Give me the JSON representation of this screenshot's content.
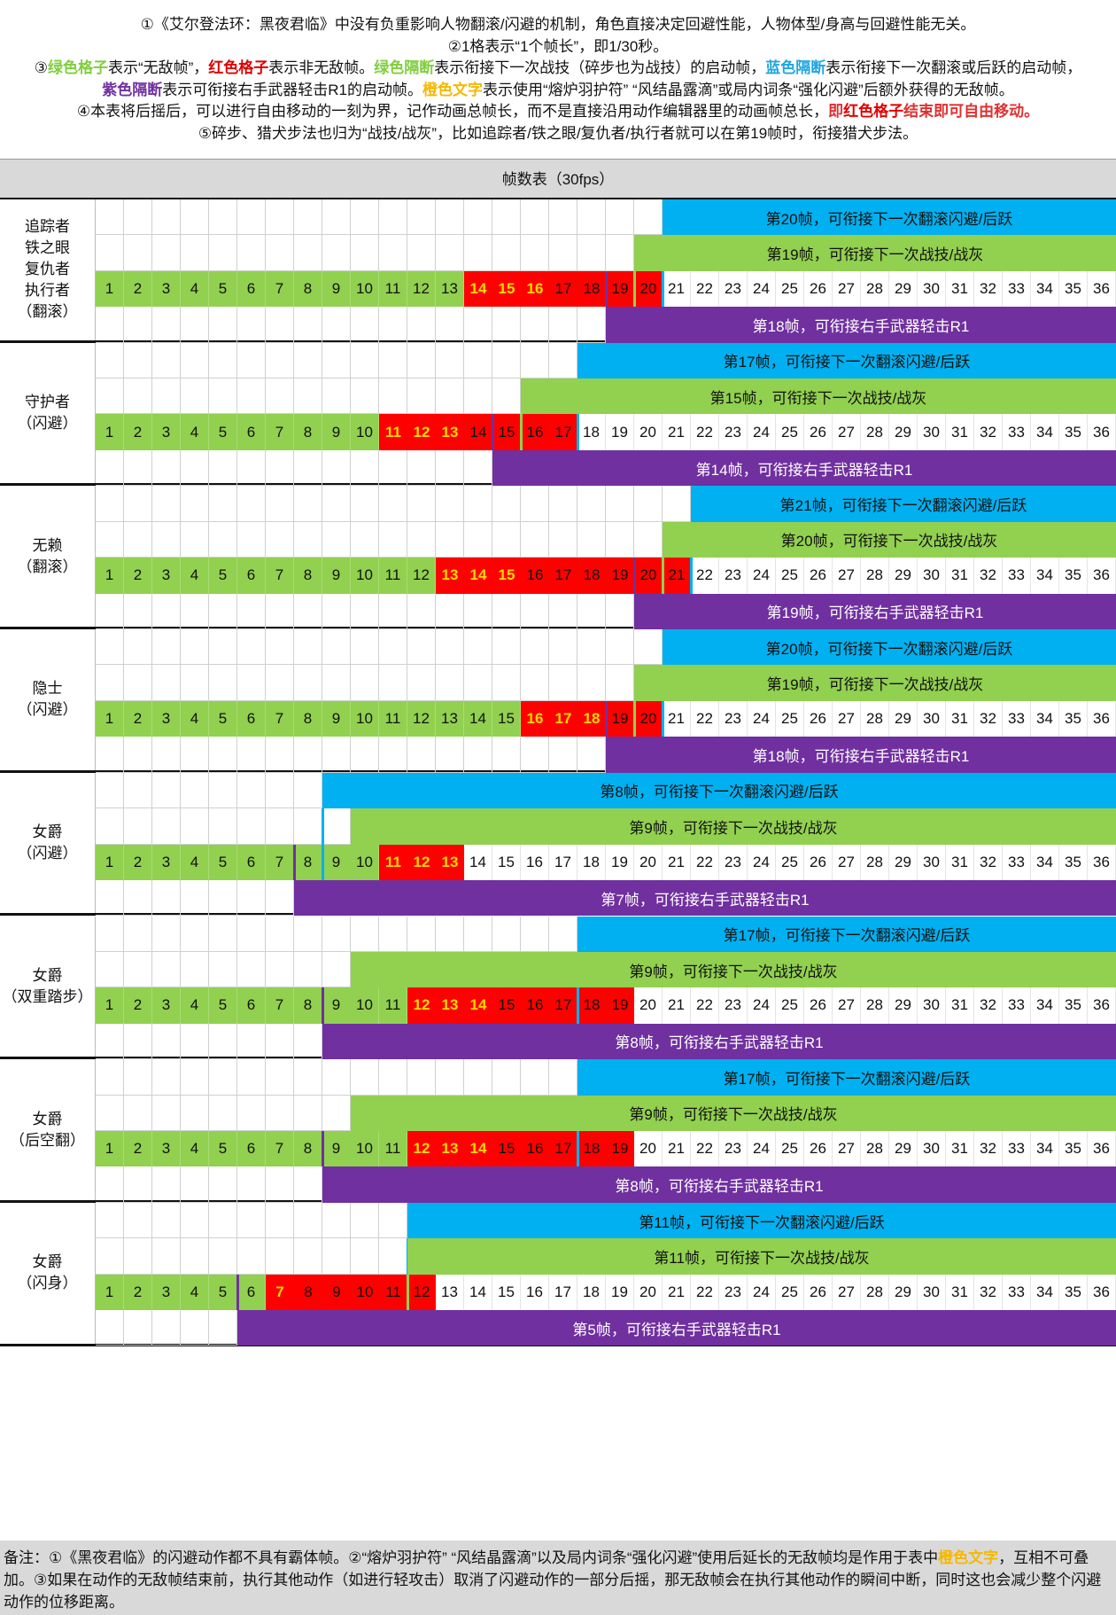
{
  "header": {
    "line1": "①《艾尔登法环：黑夜君临》中没有负重影响人物翻滚/闪避的机制，角色直接决定回避性能，人物体型/身高与回避性能无关。",
    "line2": "②1格表示“1个帧长”，即1/30秒。",
    "line3": [
      {
        "t": "③",
        "c": ""
      },
      {
        "t": "绿色格子",
        "c": "green"
      },
      {
        "t": "表示“无敌帧”，",
        "c": ""
      },
      {
        "t": "红色格子",
        "c": "red"
      },
      {
        "t": "表示非无敌帧。",
        "c": ""
      },
      {
        "t": "绿色隔断",
        "c": "green"
      },
      {
        "t": "表示衔接下一次战技（碎步也为战技）的启动帧，",
        "c": ""
      },
      {
        "t": "蓝色隔断",
        "c": "blue"
      },
      {
        "t": "表示衔接下一次翻滚或后跃的启动帧，",
        "c": ""
      }
    ],
    "line4": [
      {
        "t": "紫色隔断",
        "c": "purple"
      },
      {
        "t": "表示可衔接右手武器轻击R1的启动帧。",
        "c": ""
      },
      {
        "t": "橙色文字",
        "c": "orange"
      },
      {
        "t": "表示使用“熔炉羽护符” “风结晶露滴”或局内词条“强化闪避”后额外获得的无敌帧。",
        "c": ""
      }
    ],
    "line5": [
      {
        "t": "④本表将后摇后，可以进行自由移动的一刻为界，记作动画总帧长，而不是直接沿用动作编辑器里的动画帧总长，",
        "c": ""
      },
      {
        "t": "即",
        "c": "redtxt"
      },
      {
        "t": "红色格子",
        "c": "red"
      },
      {
        "t": "结束即可自由移动。",
        "c": "redtxt"
      }
    ],
    "line6": "⑤碎步、猎犬步法也归为“战技/战灰”，比如追踪者/铁之眼/复仇者/执行者就可以在第19帧时，衔接猎犬步法。"
  },
  "table_title": "帧数表（30fps）",
  "total_frames": 36,
  "rows": [
    {
      "label_lines": [
        "追踪者",
        "铁之眼",
        "复仇者",
        "执行者",
        "（翻滚）"
      ],
      "green_end": 13,
      "red_end": 20,
      "orange": [
        14,
        15,
        16
      ],
      "blue": {
        "frame": 20,
        "text": "第20帧，可衔接下一次翻滚闪避/后跃"
      },
      "green": {
        "frame": 19,
        "text": "第19帧，可衔接下一次战技/战灰"
      },
      "purple": {
        "frame": 18,
        "text": "第18帧，可衔接右手武器轻击R1"
      }
    },
    {
      "label_lines": [
        "守护者",
        "（闪避）"
      ],
      "green_end": 10,
      "red_end": 17,
      "orange": [
        11,
        12,
        13
      ],
      "blue": {
        "frame": 17,
        "text": "第17帧，可衔接下一次翻滚闪避/后跃"
      },
      "green": {
        "frame": 15,
        "text": "第15帧，可衔接下一次战技/战灰"
      },
      "purple": {
        "frame": 14,
        "text": "第14帧，可衔接右手武器轻击R1"
      }
    },
    {
      "label_lines": [
        "无赖",
        "（翻滚）"
      ],
      "green_end": 12,
      "red_end": 21,
      "orange": [
        13,
        14,
        15
      ],
      "blue": {
        "frame": 21,
        "text": "第21帧，可衔接下一次翻滚闪避/后跃"
      },
      "green": {
        "frame": 20,
        "text": "第20帧，可衔接下一次战技/战灰"
      },
      "purple": {
        "frame": 19,
        "text": "第19帧，可衔接右手武器轻击R1"
      }
    },
    {
      "label_lines": [
        "隐士",
        "（闪避）"
      ],
      "green_end": 15,
      "red_end": 20,
      "orange": [
        16,
        17,
        18
      ],
      "blue": {
        "frame": 20,
        "text": "第20帧，可衔接下一次翻滚闪避/后跃"
      },
      "green": {
        "frame": 19,
        "text": "第19帧，可衔接下一次战技/战灰"
      },
      "purple": {
        "frame": 18,
        "text": "第18帧，可衔接右手武器轻击R1"
      }
    },
    {
      "label_lines": [
        "女爵",
        "（闪避）"
      ],
      "green_end": 10,
      "red_end": 13,
      "orange": [
        11,
        12,
        13
      ],
      "blue": {
        "frame": 8,
        "text": "第8帧，可衔接下一次翻滚闪避/后跃"
      },
      "green": {
        "frame": 9,
        "text": "第9帧，可衔接下一次战技/战灰"
      },
      "purple": {
        "frame": 7,
        "text": "第7帧，可衔接右手武器轻击R1"
      }
    },
    {
      "label_lines": [
        "女爵",
        "（双重踏步）"
      ],
      "green_end": 11,
      "red_end": 19,
      "orange": [
        12,
        13,
        14
      ],
      "blue": {
        "frame": 17,
        "text": "第17帧，可衔接下一次翻滚闪避/后跃"
      },
      "green": {
        "frame": 9,
        "text": "第9帧，可衔接下一次战技/战灰"
      },
      "purple": {
        "frame": 8,
        "text": "第8帧，可衔接右手武器轻击R1"
      }
    },
    {
      "label_lines": [
        "女爵",
        "（后空翻）"
      ],
      "green_end": 11,
      "red_end": 19,
      "orange": [
        12,
        13,
        14
      ],
      "blue": {
        "frame": 17,
        "text": "第17帧，可衔接下一次翻滚闪避/后跃"
      },
      "green": {
        "frame": 9,
        "text": "第9帧，可衔接下一次战技/战灰"
      },
      "purple": {
        "frame": 8,
        "text": "第8帧，可衔接右手武器轻击R1"
      }
    },
    {
      "label_lines": [
        "女爵",
        "（闪身）"
      ],
      "green_end": 6,
      "red_end": 12,
      "orange": [
        7
      ],
      "blue": {
        "frame": 11,
        "text": "第11帧，可衔接下一次翻滚闪避/后跃"
      },
      "green": {
        "frame": 11,
        "text": "第11帧，可衔接下一次战技/战灰"
      },
      "purple": {
        "frame": 5,
        "text": "第5帧，可衔接右手武器轻击R1"
      }
    }
  ],
  "footer": [
    {
      "t": "备注：①《黑夜君临》的闪避动作都不具有霸体帧。②“熔炉羽护符” “风结晶露滴”以及局内词条“强化闪避”使用后延长的无敌帧均是作用于表中",
      "c": ""
    },
    {
      "t": "橙色文字",
      "c": "orange"
    },
    {
      "t": "，互相不可叠加。③如果在动作的无敌帧结束前，执行其他动作（如进行轻攻击）取消了闪避动作的一部分后摇，那无敌帧会在执行其他动作的瞬间中断，同时这也会减少整个闪避动作的位移距离。",
      "c": ""
    }
  ],
  "colors": {
    "invincible_green": "#92d050",
    "non_invincible_red": "#ff0000",
    "dodge_blue": "#00b0f0",
    "r1_purple": "#7030a0",
    "orange_text": "#ffd800",
    "title_bg": "#d9d9d9"
  }
}
